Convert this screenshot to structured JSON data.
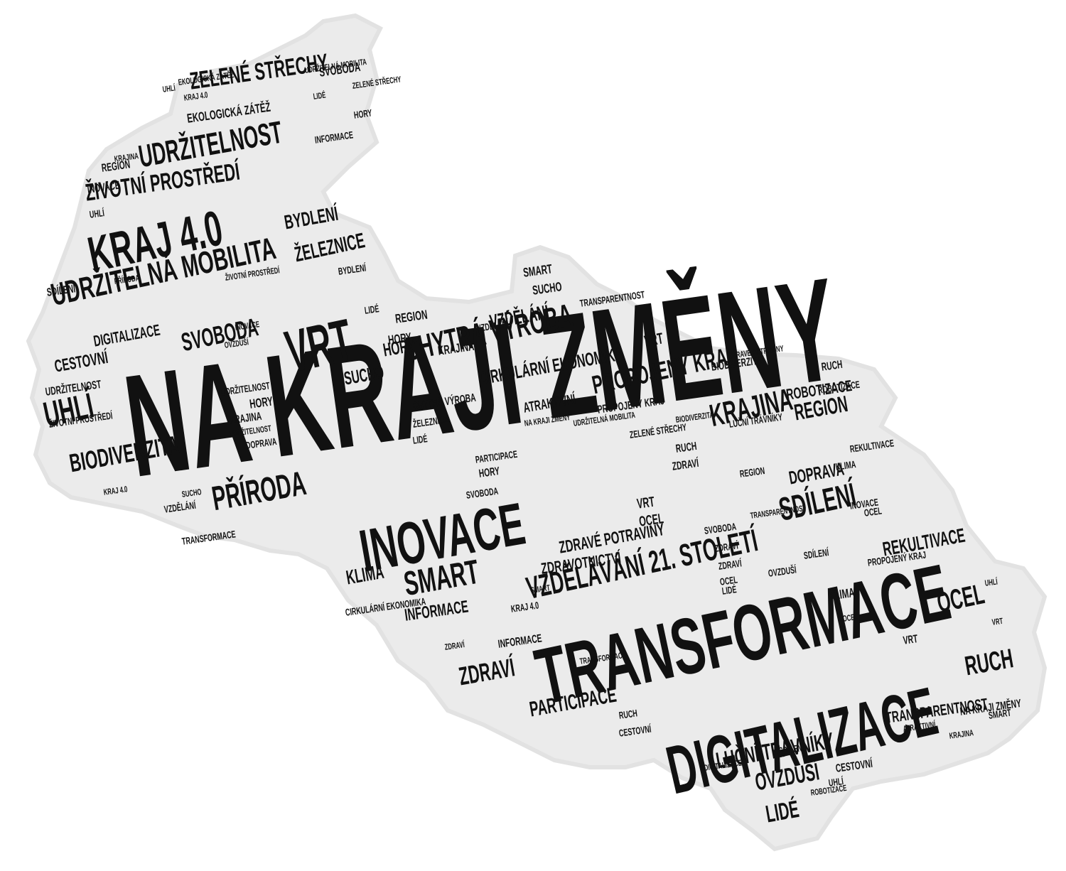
{
  "colors": {
    "background": "#ffffff",
    "shape": "#ebebeb",
    "text": "#111111"
  },
  "words": [
    "NA KRAJI ZMĚNY",
    "TRANSFORMACE",
    "DIGITALIZACE",
    "INOVACE",
    "KRAJ 4.0",
    "VRT",
    "UDRŽITELNÁ MOBILITA",
    "CHYTRÁ VÝROBA",
    "UDRŽITELNOST",
    "ŽIVOTNÍ PROSTŘEDÍ",
    "ZELENÉ STŘECHY",
    "VZDĚLÁVÁNÍ 21. STOLETÍ",
    "SMART",
    "PŘÍRODA",
    "BIODIVERZITA",
    "UHLÍ",
    "PROPOJENÝ KRAJ",
    "KRAJINA",
    "SDÍLENÍ",
    "CIRKULÁRNÍ EKONOMIKA",
    "OCEL",
    "RUCH",
    "PARTICIPACE",
    "ZDRAVÍ",
    "LUČNÍ TRÁVNÍKY",
    "OVZDUŠÍ",
    "LIDÉ",
    "TRANSPARENTNOST",
    "INFORMACE",
    "REKULTIVACE",
    "DOPRAVA",
    "REGION",
    "ZDRAVÉ POTRAVINY",
    "ZDRAVOTNICTVÍ",
    "SVOBODA",
    "ŽELEZNICE",
    "BYDLENÍ",
    "KLIMA",
    "SUCHO",
    "HORY",
    "CESTOVNÍ",
    "EKOLOGICKÁ ZÁTĚŽ",
    "ROBOTIZACE",
    "ATRAKTIVNÍ",
    "VZDĚLÁNÍ",
    "DIGITALIZACE",
    "UDRŽITELNOST",
    "SDÍLENÍ",
    "INOVACE",
    "REGION",
    "KRAJ 4.0",
    "SVOBODA",
    "UDRŽITELNÁ MOBILITA",
    "ŽIVOTNÍ PROSTŘEDÍ",
    "INFORMACE",
    "HORY",
    "SMART",
    "SUCHO",
    "TRANSPARENTNOST",
    "REGION",
    "HORY",
    "KRAJINA",
    "VZDĚLÁNÍ",
    "VRT",
    "BIODIVERZITA",
    "RUCH",
    "ROBOTIZACE",
    "LUČNÍ TRÁVNÍKY",
    "REGION",
    "CHYTRÁ VÝROBA",
    "ŽELEZNICE",
    "LIDÉ",
    "ZELENÉ STŘECHY",
    "RUCH",
    "PARTICIPACE",
    "HORY",
    "SVOBODA",
    "OCEL",
    "VRT",
    "ZDRAVÍ",
    "OCEL",
    "KRAJ 4.0",
    "INFORMACE",
    "ZDRAVÍ",
    "KLIMA",
    "VRT",
    "KLIMA",
    "OCEL",
    "PROPOJENÝ KRAJ",
    "NA KRAJI ZMĚNY",
    "TRANSFORMACE",
    "CESTOVNÍ",
    "UHLÍ",
    "SDÍLENÍ",
    "KRAJ 4.0",
    "VZDĚLÁNÍ",
    "TRANSFORMACE",
    "UDRŽITELNOST",
    "KRAJINA",
    "HORY",
    "UHLÍ",
    "INOVACE",
    "BYDLENÍ",
    "LIDÉ",
    "DOPRAVA",
    "SMART",
    "CIRKULÁRNÍ EKONOMIKA",
    "OVZDUŠÍ",
    "NA KRAJI ZMĚNY",
    "ATRAKTIVNÍ",
    "OVZDUŠÍ",
    "INOVACE",
    "PROPOJENÝ KRAJ",
    "OCEL",
    "SVOBODA",
    "LIDÉ",
    "ZDRAVÍ",
    "SMART",
    "VRT",
    "RUCH",
    "CESTOVNÍ",
    "UHLÍ",
    "REKULTIVACE",
    "KRAJINA",
    "TRANSPARENTNOST",
    "SDÍLENÍ",
    "SUCHO",
    "EKOLOGICKÁ ZÁTĚŽ",
    "PŘÍRODA",
    "ZELENÉ STŘECHY",
    "BIODIVERZITA",
    "UDRŽITELNÁ MOBILITA",
    "ŽIVOTNÍ PROSTŘEDÍ",
    "ZDRAVÉ POTRAVINY",
    "DIGITALIZACE",
    "ROBOTIZACE",
    "UDRŽITELNOST",
    "LIDÉ",
    "UHLÍ",
    "KRAJINA",
    "ZDRAVÍ",
    "INFORMACE",
    "DIGITALIZACE",
    "HORY",
    "MODERNIZOVANÁ INFRASTRUKTURA"
  ]
}
